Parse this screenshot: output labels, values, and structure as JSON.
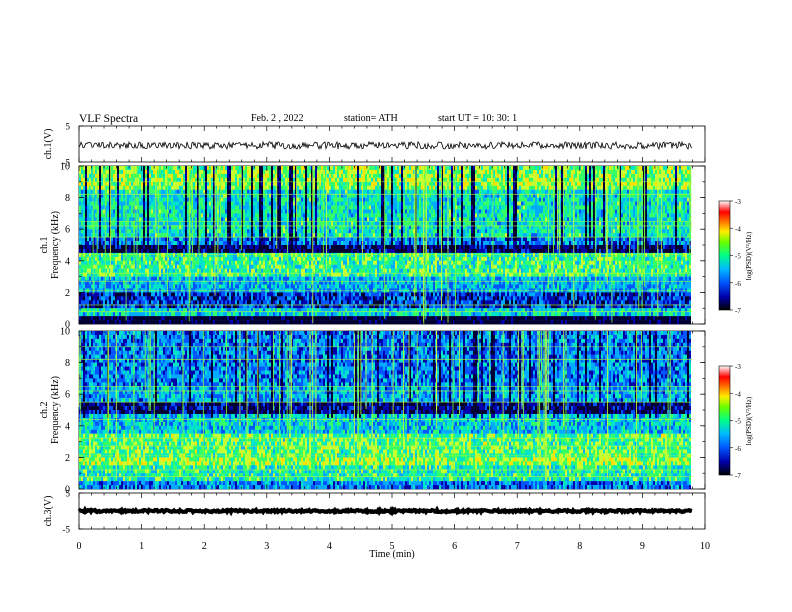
{
  "header": {
    "title": "VLF  Spectra",
    "date": "Feb. 2  , 2022",
    "station": "station= ATH",
    "start": "start  UT  =    10: 30: 1"
  },
  "chart_data": [
    {
      "type": "line",
      "panel": "ch1-waveform",
      "ylabel": "ch.1(V)",
      "ylim": [
        -5,
        5
      ],
      "y_ticks": [
        "5",
        "-5"
      ],
      "x_unit": "min",
      "xlim": [
        0,
        10
      ],
      "data_end_min": 9.8,
      "typical_level": -0.4,
      "noise_amplitude": 1.0,
      "line_color": "#000000"
    },
    {
      "type": "heatmap",
      "panel": "ch1-spectrogram",
      "ylabel": "ch.1\nFrequency  (kHz)",
      "ylim": [
        0,
        10
      ],
      "y_ticks": [
        "0",
        "2",
        "4",
        "6",
        "8",
        "10"
      ],
      "xlim": [
        0,
        10
      ],
      "data_end_min": 9.8,
      "bands_khz": [
        {
          "from": 10.0,
          "to": 8.5,
          "level": 0.6
        },
        {
          "from": 8.5,
          "to": 5.5,
          "level": 0.45
        },
        {
          "from": 5.5,
          "to": 5.0,
          "level": 0.3
        },
        {
          "from": 5.0,
          "to": 4.5,
          "level": 0.08
        },
        {
          "from": 4.5,
          "to": 3.0,
          "level": 0.52
        },
        {
          "from": 3.0,
          "to": 2.0,
          "level": 0.36
        },
        {
          "from": 2.0,
          "to": 1.0,
          "level": 0.2
        },
        {
          "from": 1.0,
          "to": 0.5,
          "level": 0.42
        },
        {
          "from": 0.5,
          "to": 0.0,
          "level": 0.0
        }
      ],
      "colorbar": {
        "label": "log(PSD)(V²/Hz)",
        "range": [
          -7,
          -3
        ],
        "ticks": [
          "-3",
          "-4",
          "-5",
          "-6",
          "-7"
        ]
      }
    },
    {
      "type": "heatmap",
      "panel": "ch2-spectrogram",
      "ylabel": "ch.2\nFrequency  (kHz)",
      "ylim": [
        0,
        10
      ],
      "y_ticks": [
        "0",
        "2",
        "4",
        "6",
        "8",
        "10"
      ],
      "xlim": [
        0,
        10
      ],
      "data_end_min": 9.8,
      "bands_khz": [
        {
          "from": 10.0,
          "to": 6.5,
          "level": 0.3
        },
        {
          "from": 6.5,
          "to": 5.5,
          "level": 0.35
        },
        {
          "from": 5.5,
          "to": 4.8,
          "level": 0.1
        },
        {
          "from": 4.8,
          "to": 3.5,
          "level": 0.4
        },
        {
          "from": 3.5,
          "to": 2.0,
          "level": 0.55
        },
        {
          "from": 2.0,
          "to": 1.5,
          "level": 0.62
        },
        {
          "from": 1.5,
          "to": 0.5,
          "level": 0.48
        },
        {
          "from": 0.5,
          "to": 0.0,
          "level": 0.3
        }
      ],
      "colorbar": {
        "label": "log(PSD)(V²/Hz)",
        "range": [
          -7,
          -3
        ],
        "ticks": [
          "-3",
          "-4",
          "-5",
          "-6",
          "-7"
        ]
      }
    },
    {
      "type": "line",
      "panel": "ch3-waveform",
      "ylabel": "ch.3(V)",
      "ylim": [
        -5,
        5
      ],
      "y_ticks": [
        "5",
        "-5"
      ],
      "xlim": [
        0,
        10
      ],
      "data_end_min": 9.8,
      "typical_level": 0.0,
      "noise_amplitude": 0.3,
      "line_color": "#000000"
    }
  ],
  "x_axis": {
    "label": "Time  (min)",
    "ticks": [
      "0",
      "1",
      "2",
      "3",
      "4",
      "5",
      "6",
      "7",
      "8",
      "9",
      "10"
    ]
  },
  "colormap": [
    "#000033",
    "#0000aa",
    "#0055ff",
    "#00aaff",
    "#00e5c8",
    "#33ff66",
    "#c8ff33",
    "#ffe000",
    "#ff6600",
    "#e00000",
    "#ffffff"
  ]
}
